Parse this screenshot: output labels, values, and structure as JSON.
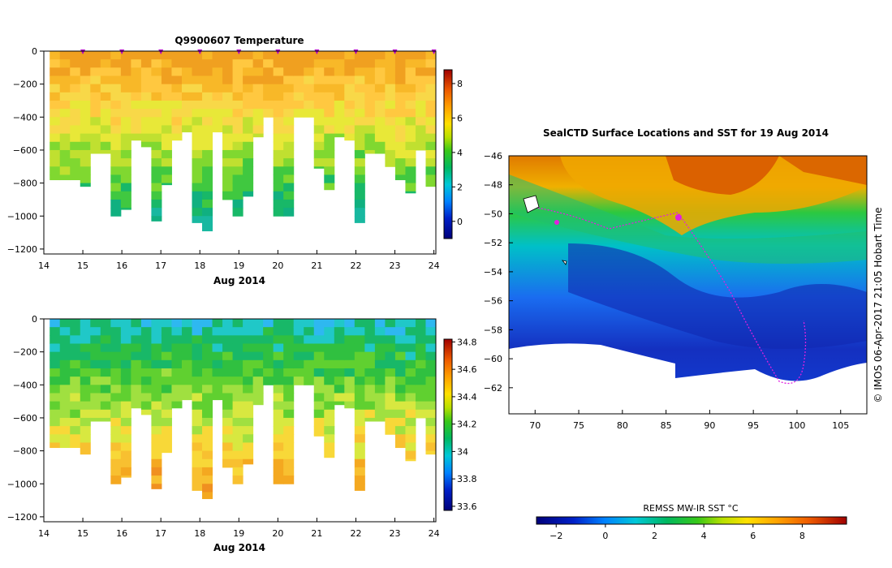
{
  "chart_data": [
    {
      "type": "heatmap",
      "title": "Q9900607  Temperature",
      "xlabel": "Aug 2014",
      "ylabel": "",
      "xlim": [
        14,
        24.05
      ],
      "ylim": [
        -1230,
        0
      ],
      "xticks": [
        14,
        15,
        16,
        17,
        18,
        19,
        20,
        21,
        22,
        23,
        24
      ],
      "yticks": [
        0,
        -200,
        -400,
        -600,
        -800,
        -1000,
        -1200
      ],
      "colorbar": {
        "min": -1,
        "max": 8.8,
        "ticks": [
          0,
          2,
          4,
          6,
          8
        ]
      },
      "surface_markers_x": [
        15,
        16,
        17,
        18,
        19,
        20,
        21,
        22,
        23,
        24
      ]
    },
    {
      "type": "heatmap",
      "title": "",
      "xlabel": "Aug 2014",
      "ylabel": "",
      "xlim": [
        14,
        24.05
      ],
      "ylim": [
        -1230,
        0
      ],
      "xticks": [
        14,
        15,
        16,
        17,
        18,
        19,
        20,
        21,
        22,
        23,
        24
      ],
      "yticks": [
        0,
        -200,
        -400,
        -600,
        -800,
        -1000,
        -1200
      ],
      "colorbar": {
        "min": 33.57,
        "max": 34.82,
        "ticks": [
          33.6,
          33.8,
          34,
          34.2,
          34.4,
          34.6,
          34.8
        ],
        "tick_labels": [
          "33.6",
          "33.8",
          "34",
          "34.2",
          "34.4",
          "34.6",
          "34.8"
        ]
      }
    },
    {
      "type": "heatmap",
      "title": "SealCTD Surface Locations and SST for 19 Aug 2014",
      "xlabel": "",
      "ylabel": "",
      "xlim": [
        67,
        108
      ],
      "ylim": [
        -63.8,
        -46
      ],
      "xticks": [
        70,
        75,
        80,
        85,
        90,
        95,
        100,
        105
      ],
      "yticks": [
        -46,
        -48,
        -50,
        -52,
        -54,
        -56,
        -58,
        -60,
        -62
      ],
      "colorbar": {
        "label": "REMSS MW-IR SST °C",
        "min": -2.8,
        "max": 9.8,
        "ticks": [
          -2,
          0,
          2,
          4,
          6,
          8
        ]
      }
    }
  ],
  "credit": "© IMOS 06-Apr-2017 21:05 Hobart Time"
}
